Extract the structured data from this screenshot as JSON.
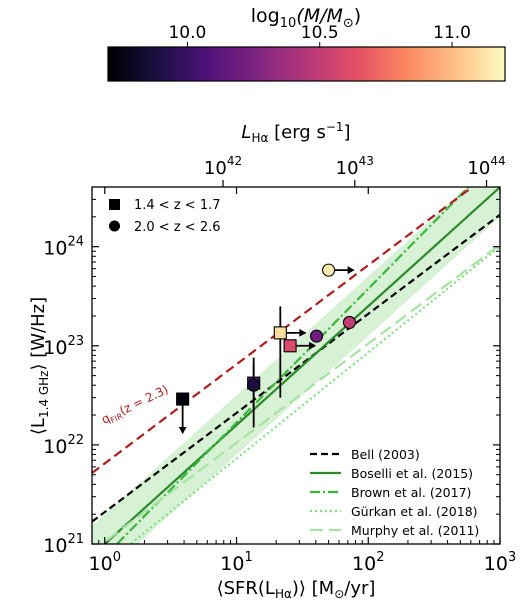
{
  "chart_data": {
    "type": "scatter",
    "x_axis": {
      "label": "⟨SFR(L",
      "label_sub": "Hα",
      "label_tail": ")⟩ [M",
      "label_tail_sub": "⊙",
      "label_end": "/yr]",
      "scale": "log",
      "lim": [
        0.8,
        1000
      ],
      "ticks": [
        {
          "value": 1,
          "exp": "0"
        },
        {
          "value": 10,
          "exp": "1"
        },
        {
          "value": 100,
          "exp": "2"
        },
        {
          "value": 1000,
          "exp": "3"
        }
      ]
    },
    "y_axis": {
      "label": "⟨L",
      "label_sub": "1.4 GHz",
      "label_tail": "⟩ [W/Hz]",
      "scale": "log",
      "lim": [
        1e+21,
        4e+24
      ],
      "ticks": [
        {
          "value": 1e+21,
          "exp": "21"
        },
        {
          "value": 1e+22,
          "exp": "22"
        },
        {
          "value": 1e+23,
          "exp": "23"
        },
        {
          "value": 1e+24,
          "exp": "24"
        }
      ]
    },
    "top_axis": {
      "label": "L",
      "label_sub": "Hα",
      "label_tail": " [erg s",
      "label_sup": "−1",
      "label_end": "]",
      "scale": "log",
      "ticks": [
        {
          "value": 1e+42,
          "exp": "42",
          "sfr": 7.9
        },
        {
          "value": 1e+43,
          "exp": "43",
          "sfr": 79
        },
        {
          "value": 1e+44,
          "exp": "44",
          "sfr": 790
        }
      ]
    },
    "colorbar": {
      "label": "log",
      "label_sub": "10",
      "label_tail": "(M/M",
      "label_tail_sub": "⊙",
      "label_end": ")",
      "range": [
        9.7,
        11.2
      ],
      "colormap": "magma",
      "ticks": [
        {
          "value": 10.0,
          "label": "10.0"
        },
        {
          "value": 10.5,
          "label": "10.5"
        },
        {
          "value": 11.0,
          "label": "11.0"
        }
      ]
    },
    "relations": [
      {
        "name": "Bell (2003)",
        "color": "#000000",
        "dash": "7,4",
        "slope": 1.0,
        "norm": 2.1e+21,
        "legend": true
      },
      {
        "name": "Boselli et al. (2015)",
        "color": "#2a8a2a",
        "dash": "",
        "slope": 1.2,
        "norm": 1e+21,
        "legend": true
      },
      {
        "name": "Brown et al. (2017)",
        "color": "#3cb53c",
        "dash": "10,3,2,3",
        "slope": 1.35,
        "norm": 7.5e+20,
        "legend": true
      },
      {
        "name": "Gürkan et al. (2018)",
        "color": "#7fe07f",
        "dash": "2,3",
        "slope": 1.07,
        "norm": 6.2e+20,
        "legend": true
      },
      {
        "name": "Murphy et al. (2011)",
        "color": "#a6e3a0",
        "dash": "13,6",
        "slope": 1.0,
        "norm": 1.05e+21,
        "legend": true
      },
      {
        "name": "",
        "color": "#b01c1c",
        "dash": "9,5",
        "slope": 1.0,
        "norm": 6.5e+21,
        "legend": false
      }
    ],
    "qfir_label": "q",
    "qfir_sub": "FIR",
    "qfir_tail": "(z = 2.3)",
    "shaded_band": {
      "color": "#cdeecb",
      "slope": 1.2,
      "norm": 1e+21,
      "width_dex": 0.3
    },
    "samples": [
      {
        "name": "1.4 < z < 1.7",
        "marker": "square"
      },
      {
        "name": "2.0 < z < 2.6",
        "marker": "circle"
      }
    ],
    "points": [
      {
        "marker": "square",
        "x": 3.9,
        "y": 2.9e+22,
        "mass": 9.72,
        "upper_limit": true,
        "xerr_lo": 0,
        "xerr_hi": 0,
        "yerr_lo": 0,
        "yerr_hi": 0
      },
      {
        "marker": "square",
        "x": 13.5,
        "y": 4.2e+22,
        "mass": 10.08,
        "upper_limit": false,
        "xerr_lo": 0,
        "xerr_hi": 0,
        "yerr_lo": 2e+22,
        "yerr_hi": 3.4e+22
      },
      {
        "marker": "circle",
        "x": 13.5,
        "y": 4e+22,
        "mass": 9.88,
        "upper_limit": false,
        "xerr_lo": 0,
        "xerr_hi": 0,
        "yerr_lo": 2.5e+22,
        "yerr_hi": 2.5e+22
      },
      {
        "marker": "square",
        "x": 25.5,
        "y": 1e+23,
        "mass": 10.6,
        "upper_limit": false,
        "xerr_lo": 0,
        "xerr_hi": 0,
        "yerr_lo": 0,
        "yerr_hi": 0,
        "lower_limit_x": true
      },
      {
        "marker": "square",
        "x": 21.5,
        "y": 1.35e+23,
        "mass": 11.1,
        "upper_limit": false,
        "xerr_lo": 0,
        "xerr_hi": 0,
        "yerr_lo": 1.05e+23,
        "yerr_hi": 1.15e+23,
        "lower_limit_x": true
      },
      {
        "marker": "circle",
        "x": 40.5,
        "y": 1.25e+23,
        "mass": 10.2,
        "upper_limit": false,
        "xerr_lo": 0,
        "xerr_hi": 0,
        "yerr_lo": 0,
        "yerr_hi": 0
      },
      {
        "marker": "circle",
        "x": 72,
        "y": 1.72e+23,
        "mass": 10.5,
        "upper_limit": false,
        "xerr_lo": 0,
        "xerr_hi": 0,
        "yerr_lo": 0,
        "yerr_hi": 0
      },
      {
        "marker": "circle",
        "x": 50,
        "y": 5.8e+23,
        "mass": 11.15,
        "upper_limit": false,
        "xerr_lo": 0,
        "xerr_hi": 0,
        "yerr_lo": 0,
        "yerr_hi": 0,
        "lower_limit_x": true
      }
    ]
  }
}
